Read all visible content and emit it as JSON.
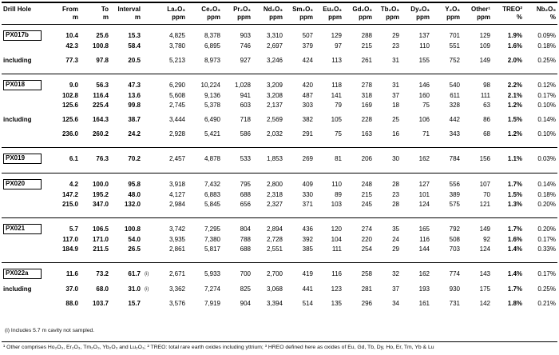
{
  "table": {
    "columns": [
      {
        "key": "hole",
        "label": "Drill Hole",
        "unit": ""
      },
      {
        "key": "from",
        "label": "From",
        "unit": "m"
      },
      {
        "key": "to",
        "label": "To",
        "unit": "m"
      },
      {
        "key": "interval",
        "label": "Interval",
        "unit": "m"
      },
      {
        "key": "flag",
        "label": "",
        "unit": ""
      },
      {
        "key": "la2o3",
        "label": "La₂O₃",
        "unit": "ppm"
      },
      {
        "key": "ce2o3",
        "label": "Ce₂O₃",
        "unit": "ppm"
      },
      {
        "key": "pr2o3",
        "label": "Pr₂O₃",
        "unit": "ppm"
      },
      {
        "key": "nd2o3",
        "label": "Nd₂O₃",
        "unit": "ppm"
      },
      {
        "key": "sm2o3",
        "label": "Sm₂O₃",
        "unit": "ppm"
      },
      {
        "key": "eu2o3",
        "label": "Eu₂O₃",
        "unit": "ppm"
      },
      {
        "key": "gd2o3",
        "label": "Gd₂O₃",
        "unit": "ppm"
      },
      {
        "key": "tb2o3",
        "label": "Tb₂O₃",
        "unit": "ppm"
      },
      {
        "key": "dy2o3",
        "label": "Dy₂O₃",
        "unit": "ppm"
      },
      {
        "key": "y2o3",
        "label": "Y₂O₃",
        "unit": "ppm"
      },
      {
        "key": "other",
        "label": "Other¹",
        "unit": "ppm"
      },
      {
        "key": "treo",
        "label": "TREO²",
        "unit": "%"
      },
      {
        "key": "nb2o5",
        "label": "Nb₂O₅",
        "unit": "%"
      }
    ],
    "sections": [
      {
        "hole": "PX017b",
        "rows": [
          {
            "label": "PX017b",
            "boxed": true,
            "from": "10.4",
            "to": "25.6",
            "interval": "15.3",
            "flag": "",
            "values": [
              "4,825",
              "8,378",
              "903",
              "3,310",
              "507",
              "129",
              "288",
              "29",
              "137",
              "701",
              "129"
            ],
            "treo": "1.9%",
            "nb": "0.09%"
          },
          {
            "label": "",
            "from": "42.3",
            "to": "100.8",
            "interval": "58.4",
            "flag": "",
            "values": [
              "3,780",
              "6,895",
              "746",
              "2,697",
              "379",
              "97",
              "215",
              "23",
              "110",
              "551",
              "109"
            ],
            "treo": "1.6%",
            "nb": "0.18%"
          },
          {
            "gap": true
          },
          {
            "label": "including",
            "from": "77.3",
            "to": "97.8",
            "interval": "20.5",
            "flag": "",
            "values": [
              "5,213",
              "8,973",
              "927",
              "3,246",
              "424",
              "113",
              "261",
              "31",
              "155",
              "752",
              "149"
            ],
            "treo": "2.0%",
            "nb": "0.25%"
          }
        ]
      },
      {
        "hole": "PX018",
        "rows": [
          {
            "label": "PX018",
            "boxed": true,
            "from": "9.0",
            "to": "56.3",
            "interval": "47.3",
            "flag": "",
            "values": [
              "6,290",
              "10,224",
              "1,028",
              "3,209",
              "420",
              "118",
              "278",
              "31",
              "146",
              "540",
              "98"
            ],
            "treo": "2.2%",
            "nb": "0.12%"
          },
          {
            "label": "",
            "from": "102.8",
            "to": "116.4",
            "interval": "13.6",
            "flag": "",
            "values": [
              "5,608",
              "9,136",
              "941",
              "3,208",
              "487",
              "141",
              "318",
              "37",
              "160",
              "611",
              "111"
            ],
            "treo": "2.1%",
            "nb": "0.17%"
          },
          {
            "label": "",
            "from": "125.6",
            "to": "225.4",
            "interval": "99.8",
            "flag": "",
            "values": [
              "2,745",
              "5,378",
              "603",
              "2,137",
              "303",
              "79",
              "169",
              "18",
              "75",
              "328",
              "63"
            ],
            "treo": "1.2%",
            "nb": "0.10%"
          },
          {
            "gap": true
          },
          {
            "label": "including",
            "from": "125.6",
            "to": "164.3",
            "interval": "38.7",
            "flag": "",
            "values": [
              "3,444",
              "6,490",
              "718",
              "2,569",
              "382",
              "105",
              "228",
              "25",
              "106",
              "442",
              "86"
            ],
            "treo": "1.5%",
            "nb": "0.14%"
          },
          {
            "gap": true
          },
          {
            "label": "",
            "from": "236.0",
            "to": "260.2",
            "interval": "24.2",
            "flag": "",
            "values": [
              "2,928",
              "5,421",
              "586",
              "2,032",
              "291",
              "75",
              "163",
              "16",
              "71",
              "343",
              "68"
            ],
            "treo": "1.2%",
            "nb": "0.10%"
          }
        ]
      },
      {
        "hole": "PX019",
        "rows": [
          {
            "label": "PX019",
            "boxed": true,
            "from": "6.1",
            "to": "76.3",
            "interval": "70.2",
            "flag": "",
            "values": [
              "2,457",
              "4,878",
              "533",
              "1,853",
              "269",
              "81",
              "206",
              "30",
              "162",
              "784",
              "156"
            ],
            "treo": "1.1%",
            "nb": "0.03%"
          }
        ]
      },
      {
        "hole": "PX020",
        "rows": [
          {
            "label": "PX020",
            "boxed": true,
            "from": "4.2",
            "to": "100.0",
            "interval": "95.8",
            "flag": "",
            "values": [
              "3,918",
              "7,432",
              "795",
              "2,800",
              "409",
              "110",
              "248",
              "28",
              "127",
              "556",
              "107"
            ],
            "treo": "1.7%",
            "nb": "0.14%"
          },
          {
            "label": "",
            "from": "147.2",
            "to": "195.2",
            "interval": "48.0",
            "flag": "",
            "values": [
              "4,127",
              "6,883",
              "688",
              "2,318",
              "330",
              "89",
              "215",
              "23",
              "101",
              "389",
              "70"
            ],
            "treo": "1.5%",
            "nb": "0.18%"
          },
          {
            "label": "",
            "from": "215.0",
            "to": "347.0",
            "interval": "132.0",
            "flag": "",
            "values": [
              "2,984",
              "5,845",
              "656",
              "2,327",
              "371",
              "103",
              "245",
              "28",
              "124",
              "575",
              "121"
            ],
            "treo": "1.3%",
            "nb": "0.20%"
          }
        ]
      },
      {
        "hole": "PX021",
        "rows": [
          {
            "label": "PX021",
            "boxed": true,
            "from": "5.7",
            "to": "106.5",
            "interval": "100.8",
            "flag": "",
            "values": [
              "3,742",
              "7,295",
              "804",
              "2,894",
              "436",
              "120",
              "274",
              "35",
              "165",
              "792",
              "149"
            ],
            "treo": "1.7%",
            "nb": "0.20%"
          },
          {
            "label": "",
            "from": "117.0",
            "to": "171.0",
            "interval": "54.0",
            "flag": "",
            "values": [
              "3,935",
              "7,380",
              "788",
              "2,728",
              "392",
              "104",
              "220",
              "24",
              "116",
              "508",
              "92"
            ],
            "treo": "1.6%",
            "nb": "0.17%"
          },
          {
            "label": "",
            "from": "184.9",
            "to": "211.5",
            "interval": "26.5",
            "flag": "",
            "values": [
              "2,861",
              "5,817",
              "688",
              "2,551",
              "385",
              "111",
              "254",
              "29",
              "144",
              "703",
              "124"
            ],
            "treo": "1.4%",
            "nb": "0.33%"
          }
        ]
      },
      {
        "hole": "PX022a",
        "rows": [
          {
            "label": "PX022a",
            "boxed": true,
            "from": "11.6",
            "to": "73.2",
            "interval": "61.7",
            "flag": "(i)",
            "values": [
              "2,671",
              "5,933",
              "700",
              "2,700",
              "419",
              "116",
              "258",
              "32",
              "162",
              "774",
              "143"
            ],
            "treo": "1.4%",
            "nb": "0.17%"
          },
          {
            "gap": true
          },
          {
            "label": "including",
            "from": "37.0",
            "to": "68.0",
            "interval": "31.0",
            "flag": "(i)",
            "values": [
              "3,362",
              "7,274",
              "825",
              "3,068",
              "441",
              "123",
              "281",
              "37",
              "193",
              "930",
              "175"
            ],
            "treo": "1.7%",
            "nb": "0.25%"
          },
          {
            "gap": true
          },
          {
            "label": "",
            "from": "88.0",
            "to": "103.7",
            "interval": "15.7",
            "flag": "",
            "values": [
              "3,576",
              "7,919",
              "904",
              "3,394",
              "514",
              "135",
              "296",
              "34",
              "161",
              "731",
              "142"
            ],
            "treo": "1.8%",
            "nb": "0.21%"
          }
        ]
      }
    ]
  },
  "notes": {
    "cavity": "(i) Includes 5.7 m cavity not sampled.",
    "footnote": "¹ Other comprises Ho₂O₃, Er₂O₃, Tm₂O₃, Yb₂O₃ and Lu₂O₃; ² TREO: total rare earth oxides including yttrium; ³ HREO defined here as oxides of Eu, Gd, Tb, Dy, Ho, Er, Tm, Yb & Lu"
  }
}
